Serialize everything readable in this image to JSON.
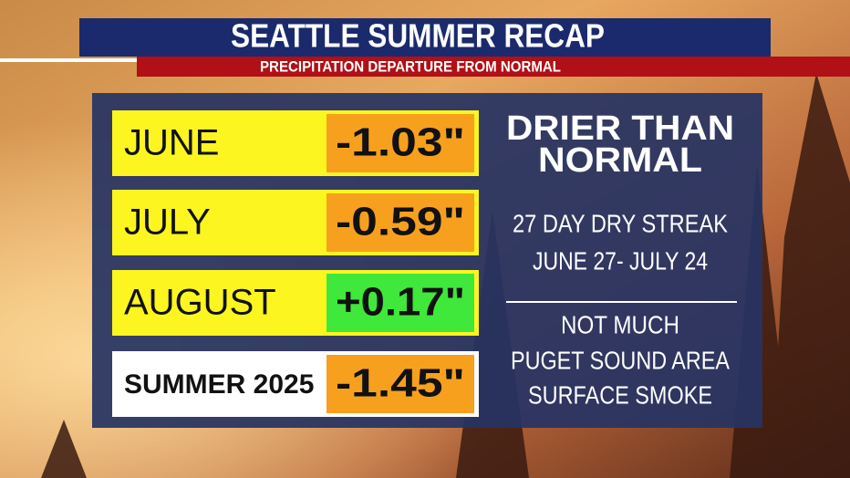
{
  "header": {
    "title": "SEATTLE SUMMER RECAP",
    "subtitle": "PRECIPITATION DEPARTURE FROM NORMAL"
  },
  "table": {
    "rows": [
      {
        "label": "JUNE",
        "value": "-1.03\""
      },
      {
        "label": "JULY",
        "value": "-0.59\""
      },
      {
        "label": "AUGUST",
        "value": "+0.17\""
      },
      {
        "label": "SUMMER 2025",
        "value": "-1.45\""
      }
    ]
  },
  "side_panel": {
    "headline": [
      "DRIER THAN",
      "NORMAL"
    ],
    "streak": [
      "27 DAY DRY STREAK",
      "JUNE 27- JULY 24"
    ],
    "note": [
      "NOT MUCH",
      "PUGET SOUND AREA",
      "SURFACE SMOKE"
    ]
  }
}
